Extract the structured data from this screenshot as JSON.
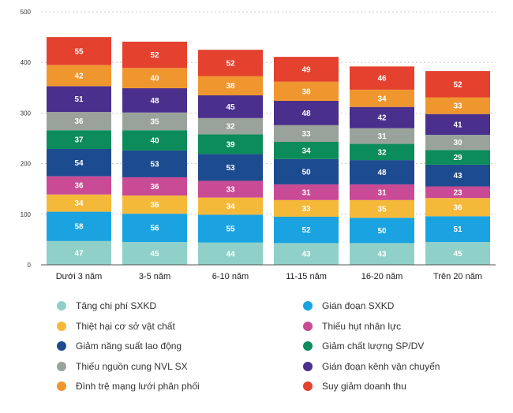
{
  "chart_data": {
    "type": "bar",
    "stacked": true,
    "title": "",
    "xlabel": "",
    "ylabel": "",
    "ylim": [
      0,
      500
    ],
    "yticks": [
      0,
      100,
      200,
      300,
      400,
      500
    ],
    "grid": true,
    "legend_position": "bottom",
    "categories": [
      "Dưới 3 năm",
      "3-5 năm",
      "6-10 năm",
      "11-15 năm",
      "16-20 năm",
      "Trên 20 năm"
    ],
    "series": [
      {
        "name": "Tăng chi phí SXKD",
        "color": "#8fd0c8",
        "values": [
          47,
          45,
          44,
          43,
          43,
          45
        ]
      },
      {
        "name": "Gián đoạn SXKD",
        "color": "#1aa3e0",
        "values": [
          58,
          56,
          55,
          52,
          50,
          51
        ]
      },
      {
        "name": "Thiệt hại cơ sở vật chất",
        "color": "#f5b93a",
        "values": [
          34,
          36,
          34,
          33,
          35,
          36
        ]
      },
      {
        "name": "Thiếu hụt nhân lực",
        "color": "#c94a95",
        "values": [
          36,
          36,
          33,
          31,
          31,
          23
        ]
      },
      {
        "name": "Giảm năng suất lao động",
        "color": "#1d4b8f",
        "values": [
          54,
          53,
          53,
          50,
          48,
          43
        ]
      },
      {
        "name": "Giảm chất lượng SP/DV",
        "color": "#0c8c5a",
        "values": [
          37,
          40,
          39,
          34,
          32,
          29
        ]
      },
      {
        "name": "Thiếu nguồn cung NVL SX",
        "color": "#9aa29c",
        "values": [
          36,
          35,
          32,
          33,
          31,
          30
        ]
      },
      {
        "name": "Gián đoạn kênh vận chuyển",
        "color": "#4a2f8c",
        "values": [
          51,
          48,
          45,
          48,
          42,
          41
        ]
      },
      {
        "name": "Đình trệ mạng lưới phân phối",
        "color": "#f0962e",
        "values": [
          42,
          40,
          38,
          38,
          34,
          33
        ]
      },
      {
        "name": "Suy giảm doanh thu",
        "color": "#e4412f",
        "values": [
          55,
          52,
          52,
          49,
          46,
          52
        ]
      }
    ],
    "legend_order": [
      "Tăng chi phí SXKD",
      "Gián đoạn SXKD",
      "Thiệt hại cơ sở vật chất",
      "Thiếu hụt nhân lực",
      "Giảm năng suất lao động",
      "Giảm chất lượng SP/DV",
      "Thiếu nguồn cung NVL SX",
      "Gián đoạn kênh vận chuyển",
      "Đình trệ mạng lưới phân phối",
      "Suy giảm doanh thu"
    ]
  }
}
